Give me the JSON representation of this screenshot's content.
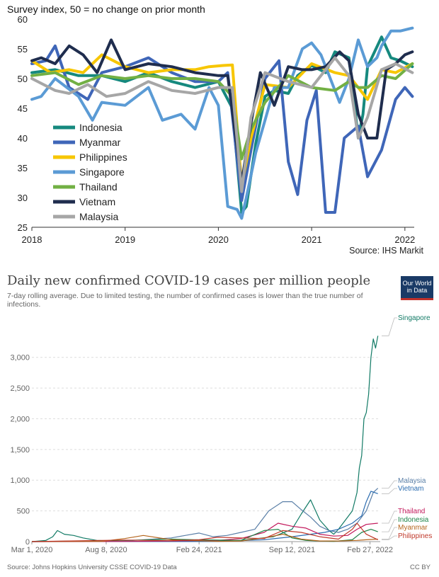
{
  "chart_data": [
    {
      "type": "line",
      "subtitle": "Survey index, 50 = no change on prior month",
      "source": "Source: IHS Markit",
      "ylim": [
        25,
        60
      ],
      "yticks": [
        25,
        30,
        35,
        40,
        45,
        50,
        55,
        60
      ],
      "xlim": [
        2018.0,
        2022.1
      ],
      "xticks": [
        {
          "v": 2018.0,
          "label": "2018"
        },
        {
          "v": 2019.0,
          "label": "2019"
        },
        {
          "v": 2020.0,
          "label": "2020"
        },
        {
          "v": 2021.0,
          "label": "2021"
        },
        {
          "v": 2022.0,
          "label": "2022"
        }
      ],
      "legend": "left",
      "series": [
        {
          "name": "Indonesia",
          "color": "#16897e",
          "x": [
            2018.0,
            2018.25,
            2018.5,
            2018.75,
            2019.0,
            2019.25,
            2019.5,
            2019.75,
            2020.0,
            2020.15,
            2020.25,
            2020.3,
            2020.4,
            2020.5,
            2020.6,
            2020.75,
            2020.85,
            2021.0,
            2021.15,
            2021.25,
            2021.4,
            2021.5,
            2021.55,
            2021.6,
            2021.75,
            2021.85,
            2021.95,
            2022.08
          ],
          "y": [
            51.0,
            51.5,
            50.5,
            50.5,
            49.5,
            51.0,
            49.5,
            48.5,
            49.5,
            45.0,
            27.5,
            28.5,
            39.0,
            47.0,
            48.0,
            47.5,
            50.5,
            52.2,
            51.0,
            54.5,
            53.5,
            40.0,
            44.0,
            52.0,
            57.0,
            53.5,
            53.0,
            52.0
          ]
        },
        {
          "name": "Myanmar",
          "color": "#3f66b8",
          "x": [
            2018.0,
            2018.15,
            2018.25,
            2018.4,
            2018.6,
            2018.75,
            2019.0,
            2019.25,
            2019.5,
            2019.75,
            2020.0,
            2020.1,
            2020.25,
            2020.35,
            2020.5,
            2020.65,
            2020.75,
            2020.85,
            2020.95,
            2021.05,
            2021.15,
            2021.25,
            2021.35,
            2021.5,
            2021.6,
            2021.75,
            2021.9,
            2022.0,
            2022.08
          ],
          "y": [
            52.5,
            53.0,
            55.5,
            48.5,
            46.5,
            51.0,
            52.0,
            53.5,
            51.0,
            49.5,
            49.5,
            51.0,
            29.5,
            38.0,
            50.0,
            53.0,
            36.0,
            30.5,
            43.0,
            48.0,
            27.5,
            27.5,
            40.0,
            42.0,
            33.5,
            38.0,
            46.5,
            48.5,
            47.0
          ]
        },
        {
          "name": "Philippines",
          "color": "#f7c600",
          "x": [
            2018.0,
            2018.2,
            2018.4,
            2018.55,
            2018.75,
            2019.0,
            2019.25,
            2019.5,
            2019.75,
            2019.9,
            2020.05,
            2020.15,
            2020.25,
            2020.35,
            2020.5,
            2020.75,
            2021.0,
            2021.25,
            2021.4,
            2021.6,
            2021.75,
            2021.9,
            2022.08
          ],
          "y": [
            53.0,
            51.0,
            51.5,
            51.0,
            54.0,
            52.0,
            51.0,
            51.5,
            51.5,
            52.0,
            52.2,
            52.3,
            32.0,
            40.0,
            49.0,
            48.5,
            52.5,
            51.0,
            50.5,
            46.5,
            51.5,
            51.0,
            52.5
          ]
        },
        {
          "name": "Singapore",
          "color": "#5b9bd5",
          "x": [
            2018.0,
            2018.1,
            2018.25,
            2018.5,
            2018.65,
            2018.75,
            2019.0,
            2019.25,
            2019.4,
            2019.6,
            2019.75,
            2019.9,
            2020.0,
            2020.1,
            2020.2,
            2020.25,
            2020.3,
            2020.4,
            2020.5,
            2020.6,
            2020.75,
            2020.9,
            2021.0,
            2021.1,
            2021.2,
            2021.3,
            2021.4,
            2021.5,
            2021.6,
            2021.7,
            2021.75,
            2021.85,
            2021.95,
            2022.08
          ],
          "y": [
            46.5,
            47.0,
            50.0,
            47.0,
            43.0,
            46.0,
            45.5,
            48.5,
            43.0,
            44.0,
            41.5,
            48.5,
            45.5,
            28.5,
            28.0,
            26.5,
            30.0,
            37.5,
            43.0,
            48.5,
            48.5,
            55.0,
            56.0,
            54.0,
            50.0,
            46.0,
            50.0,
            56.5,
            52.0,
            53.5,
            55.5,
            58.0,
            58.0,
            58.5
          ]
        },
        {
          "name": "Thailand",
          "color": "#72b044",
          "x": [
            2018.0,
            2018.25,
            2018.5,
            2018.75,
            2019.0,
            2019.25,
            2019.5,
            2019.75,
            2020.0,
            2020.15,
            2020.25,
            2020.35,
            2020.5,
            2020.75,
            2021.0,
            2021.25,
            2021.4,
            2021.5,
            2021.6,
            2021.75,
            2021.9,
            2022.08
          ],
          "y": [
            50.5,
            51.0,
            49.0,
            50.5,
            50.0,
            50.5,
            50.0,
            50.0,
            49.5,
            47.0,
            36.5,
            41.5,
            46.0,
            50.5,
            48.5,
            48.0,
            49.5,
            48.5,
            48.5,
            50.5,
            50.0,
            52.5
          ]
        },
        {
          "name": "Vietnam",
          "color": "#1f2d4e",
          "x": [
            2018.0,
            2018.1,
            2018.25,
            2018.4,
            2018.55,
            2018.7,
            2018.85,
            2019.0,
            2019.25,
            2019.5,
            2019.75,
            2020.0,
            2020.1,
            2020.25,
            2020.35,
            2020.45,
            2020.6,
            2020.75,
            2020.9,
            2021.0,
            2021.15,
            2021.3,
            2021.4,
            2021.5,
            2021.6,
            2021.7,
            2021.8,
            2021.9,
            2022.0,
            2022.08
          ],
          "y": [
            53.0,
            53.5,
            52.5,
            55.5,
            54.0,
            51.0,
            56.5,
            51.5,
            52.5,
            52.0,
            51.0,
            50.5,
            50.5,
            32.5,
            42.5,
            51.0,
            45.5,
            52.0,
            51.5,
            51.5,
            52.0,
            54.5,
            53.0,
            44.0,
            40.0,
            40.0,
            51.5,
            52.5,
            54.0,
            54.5
          ]
        },
        {
          "name": "Malaysia",
          "color": "#a6a6a6",
          "x": [
            2018.0,
            2018.25,
            2018.4,
            2018.6,
            2018.8,
            2019.0,
            2019.25,
            2019.5,
            2019.75,
            2020.0,
            2020.15,
            2020.25,
            2020.35,
            2020.5,
            2020.75,
            2021.0,
            2021.25,
            2021.4,
            2021.5,
            2021.6,
            2021.75,
            2021.9,
            2022.08
          ],
          "y": [
            50.0,
            48.0,
            47.5,
            49.0,
            47.0,
            47.5,
            49.5,
            48.0,
            47.5,
            48.5,
            48.5,
            31.0,
            43.5,
            51.0,
            49.5,
            48.5,
            53.5,
            50.5,
            40.0,
            43.5,
            51.5,
            52.5,
            51.0
          ]
        }
      ]
    },
    {
      "type": "line",
      "title": "Daily new confirmed COVID-19 cases per million people",
      "subtitle": "7-day rolling average. Due to limited testing, the number of confirmed cases is lower than the true number of infections.",
      "logo": [
        "Our World",
        "in Data"
      ],
      "source": "Source: Johns Hopkins University CSSE COVID-19 Data",
      "license": "CC BY",
      "ylim": [
        0,
        3400
      ],
      "yticks": [
        0,
        500,
        1000,
        1500,
        2000,
        2500,
        3000
      ],
      "ytick_labels": [
        "0",
        "500",
        "1,000",
        "1,500",
        "2,000",
        "2,500",
        "3,000"
      ],
      "xlim": [
        0,
        750
      ],
      "x_unit": "days since Mar 1, 2020",
      "xticks": [
        {
          "v": 0,
          "label": "Mar 1, 2020"
        },
        {
          "v": 160,
          "label": "Aug 8, 2020"
        },
        {
          "v": 360,
          "label": "Feb 24, 2021"
        },
        {
          "v": 560,
          "label": "Sep 12, 2021"
        },
        {
          "v": 728,
          "label": "Feb 27, 2022"
        }
      ],
      "series": [
        {
          "name": "Singapore",
          "color": "#117a65",
          "x": [
            0,
            30,
            45,
            55,
            70,
            90,
            110,
            140,
            200,
            300,
            400,
            450,
            520,
            560,
            580,
            600,
            620,
            640,
            650,
            660,
            670,
            680,
            690,
            700,
            705,
            710,
            715,
            720,
            725,
            730,
            735,
            740,
            745
          ],
          "y": [
            0,
            20,
            80,
            180,
            120,
            100,
            60,
            20,
            5,
            5,
            10,
            20,
            80,
            200,
            450,
            680,
            350,
            180,
            120,
            200,
            300,
            400,
            500,
            800,
            1200,
            1400,
            2000,
            2100,
            2400,
            3000,
            3300,
            3150,
            3350
          ]
        },
        {
          "name": "Malaysia",
          "color": "#5a7fa7",
          "x": [
            0,
            100,
            200,
            300,
            330,
            360,
            390,
            420,
            450,
            480,
            510,
            540,
            560,
            580,
            600,
            620,
            640,
            660,
            680,
            700,
            720,
            735,
            745
          ],
          "y": [
            0,
            5,
            10,
            60,
            100,
            140,
            80,
            100,
            150,
            200,
            500,
            650,
            650,
            520,
            400,
            250,
            180,
            150,
            200,
            300,
            500,
            800,
            870
          ]
        },
        {
          "name": "Vietnam",
          "color": "#2b6cb0",
          "x": [
            0,
            300,
            400,
            500,
            560,
            600,
            630,
            660,
            690,
            710,
            720,
            730,
            745
          ],
          "y": [
            0,
            1,
            2,
            30,
            80,
            120,
            150,
            200,
            300,
            420,
            650,
            820,
            780
          ]
        },
        {
          "name": "Thailand",
          "color": "#c2185b",
          "x": [
            0,
            200,
            300,
            400,
            450,
            500,
            530,
            560,
            590,
            620,
            650,
            680,
            700,
            720,
            745
          ],
          "y": [
            0,
            2,
            10,
            20,
            50,
            150,
            300,
            250,
            220,
            120,
            90,
            100,
            200,
            280,
            300
          ]
        },
        {
          "name": "Indonesia",
          "color": "#1e8449",
          "x": [
            0,
            200,
            300,
            350,
            400,
            450,
            500,
            530,
            560,
            590,
            620,
            650,
            690,
            710,
            730,
            745
          ],
          "y": [
            0,
            20,
            40,
            30,
            25,
            20,
            180,
            200,
            60,
            20,
            10,
            5,
            30,
            150,
            200,
            160
          ]
        },
        {
          "name": "Myanmar",
          "color": "#b5651d",
          "x": [
            0,
            150,
            200,
            240,
            300,
            400,
            450,
            500,
            540,
            580,
            620,
            660,
            700,
            720,
            745
          ],
          "y": [
            0,
            5,
            50,
            100,
            30,
            5,
            10,
            60,
            120,
            40,
            10,
            10,
            20,
            30,
            40
          ]
        },
        {
          "name": "Philippines",
          "color": "#c0392b",
          "x": [
            0,
            150,
            200,
            300,
            360,
            400,
            450,
            500,
            540,
            580,
            620,
            660,
            690,
            700,
            720,
            745
          ],
          "y": [
            0,
            20,
            25,
            15,
            30,
            70,
            60,
            50,
            180,
            150,
            80,
            40,
            200,
            300,
            120,
            30
          ]
        }
      ]
    }
  ]
}
